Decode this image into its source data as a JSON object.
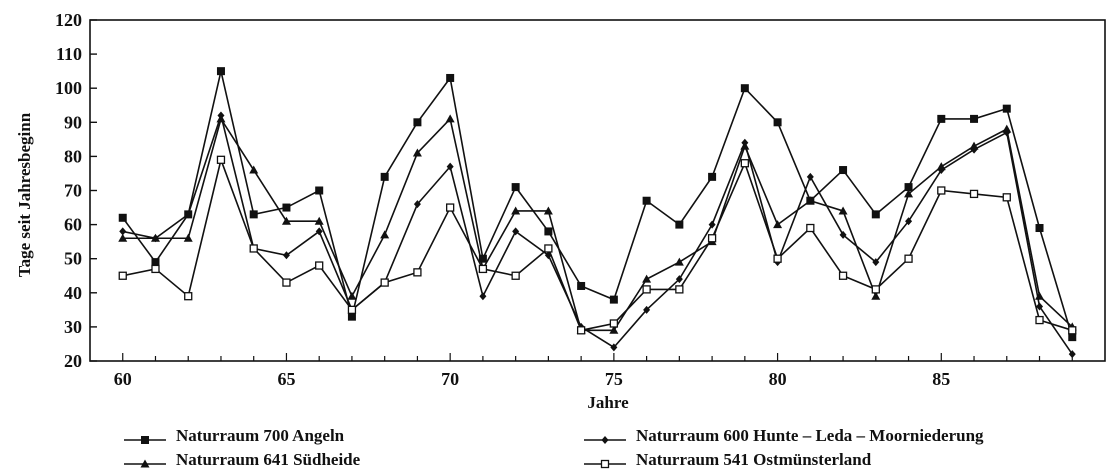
{
  "chart_data": {
    "type": "line",
    "title": "",
    "xlabel": "Jahre",
    "ylabel": "Tage seit Jahresbeginn",
    "xlim": [
      59,
      90
    ],
    "ylim": [
      20,
      120
    ],
    "x_ticks": [
      60,
      65,
      70,
      75,
      80,
      85
    ],
    "y_ticks": [
      20,
      30,
      40,
      50,
      60,
      70,
      80,
      90,
      100,
      110,
      120
    ],
    "grid": false,
    "legend_position": "bottom",
    "x": [
      60,
      61,
      62,
      63,
      64,
      65,
      66,
      67,
      68,
      69,
      70,
      71,
      72,
      73,
      74,
      75,
      76,
      77,
      78,
      79,
      80,
      81,
      82,
      83,
      84,
      85,
      86,
      87,
      88,
      89
    ],
    "series": [
      {
        "name": "Naturraum 700 Angeln",
        "marker": "filled-square",
        "values": [
          62,
          49,
          63,
          105,
          63,
          65,
          70,
          33,
          74,
          90,
          103,
          50,
          71,
          58,
          42,
          38,
          67,
          60,
          74,
          100,
          90,
          67,
          76,
          63,
          71,
          91,
          91,
          94,
          59,
          27
        ]
      },
      {
        "name": "Naturraum 600 Hunte-Leda-Moorniederung",
        "marker": "filled-diamond",
        "values": [
          58,
          56,
          63,
          92,
          53,
          51,
          58,
          35,
          43,
          66,
          77,
          39,
          58,
          51,
          30,
          24,
          35,
          44,
          60,
          84,
          49,
          74,
          57,
          49,
          61,
          76,
          82,
          87,
          36,
          22
        ]
      },
      {
        "name": "Naturraum 641 Südheide",
        "marker": "filled-triangle",
        "values": [
          56,
          56,
          56,
          91,
          76,
          61,
          61,
          39,
          57,
          81,
          91,
          47,
          64,
          64,
          29,
          29,
          44,
          49,
          55,
          83,
          60,
          67,
          64,
          39,
          69,
          77,
          83,
          88,
          39,
          30
        ]
      },
      {
        "name": "Naturraum 541 Ostmünsterland",
        "marker": "open-square",
        "values": [
          45,
          47,
          39,
          79,
          53,
          43,
          48,
          35,
          43,
          46,
          65,
          47,
          45,
          53,
          29,
          31,
          41,
          41,
          56,
          78,
          50,
          59,
          45,
          41,
          50,
          70,
          69,
          68,
          32,
          29
        ]
      }
    ]
  },
  "legend": [
    {
      "label": "Naturraum 700 Angeln",
      "marker": "filled-square"
    },
    {
      "label": "Naturraum 600 Hunte – Leda – Moorniederung",
      "marker": "filled-diamond"
    },
    {
      "label": "Naturraum 641 Südheide",
      "marker": "filled-triangle"
    },
    {
      "label": "Naturraum 541 Ostmünsterland",
      "marker": "open-square"
    }
  ]
}
